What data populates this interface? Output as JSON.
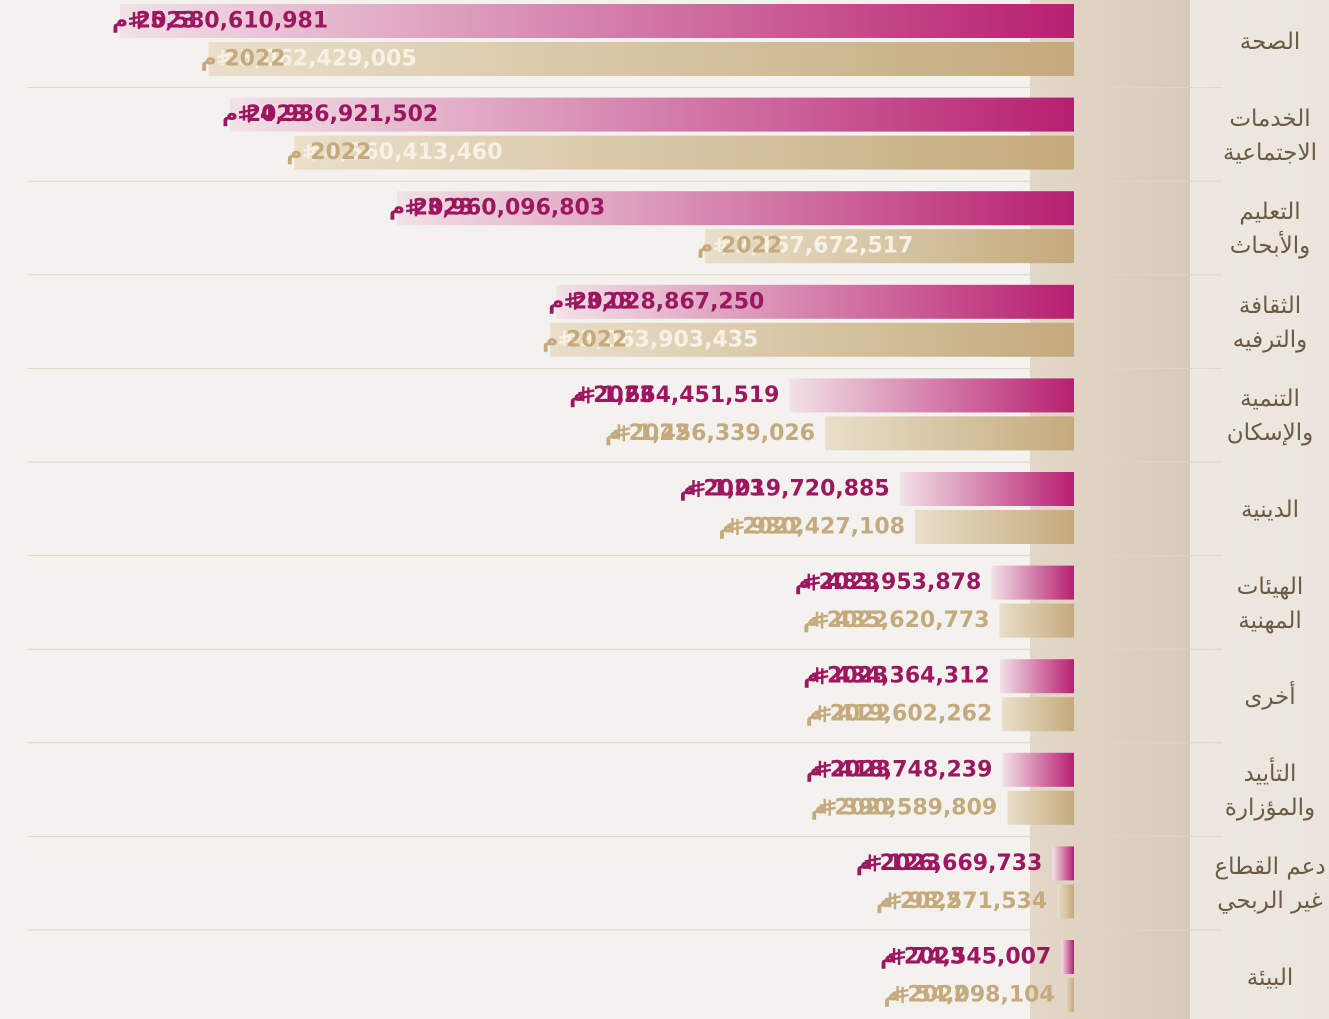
{
  "chart_data": {
    "type": "bar",
    "orientation": "horizontal",
    "categories": [
      "الصحة",
      "الخدمات الاجتماعية",
      "التعليم والأبحاث",
      "الثقافة والترفيه",
      "التنمية والإسكان",
      "الدينية",
      "الهيئات المهنية",
      "أخرى",
      "التأييد والمؤزارة",
      "دعم القطاع غير الربحي",
      "البيئة"
    ],
    "series": [
      {
        "name": "2023 م",
        "color": "#b71f70",
        "values": [
          5580610981,
          4936921502,
          3960096803,
          3028867250,
          1664451519,
          1019720885,
          483953878,
          434364312,
          418748239,
          126669733,
          74545007
        ],
        "value_labels": [
          "5,580,610,981",
          "4,936,921,502",
          "3,960,096,803",
          "3,028,867,250",
          "1,664,451,519",
          "1,019,720,885",
          "483,953,878",
          "434,364,312",
          "418,748,239",
          "126,669,733",
          "74,545,007"
        ]
      },
      {
        "name": "2022 م",
        "color": "#c4aa7c",
        "values": [
          5062429005,
          4560413460,
          2157672517,
          3063903435,
          1456339026,
          930427108,
          435620773,
          419602262,
          390589809,
          98571534,
          54098104
        ],
        "value_labels": [
          "5,062,429,005",
          "4,560,413,460",
          "2,157,672,517",
          "3,063,903,435",
          "1,456,339,026",
          "930,427,108",
          "435,620,773",
          "419,602,262",
          "390,589,809",
          "98,571,534",
          "54,098,104"
        ]
      }
    ]
  }
}
